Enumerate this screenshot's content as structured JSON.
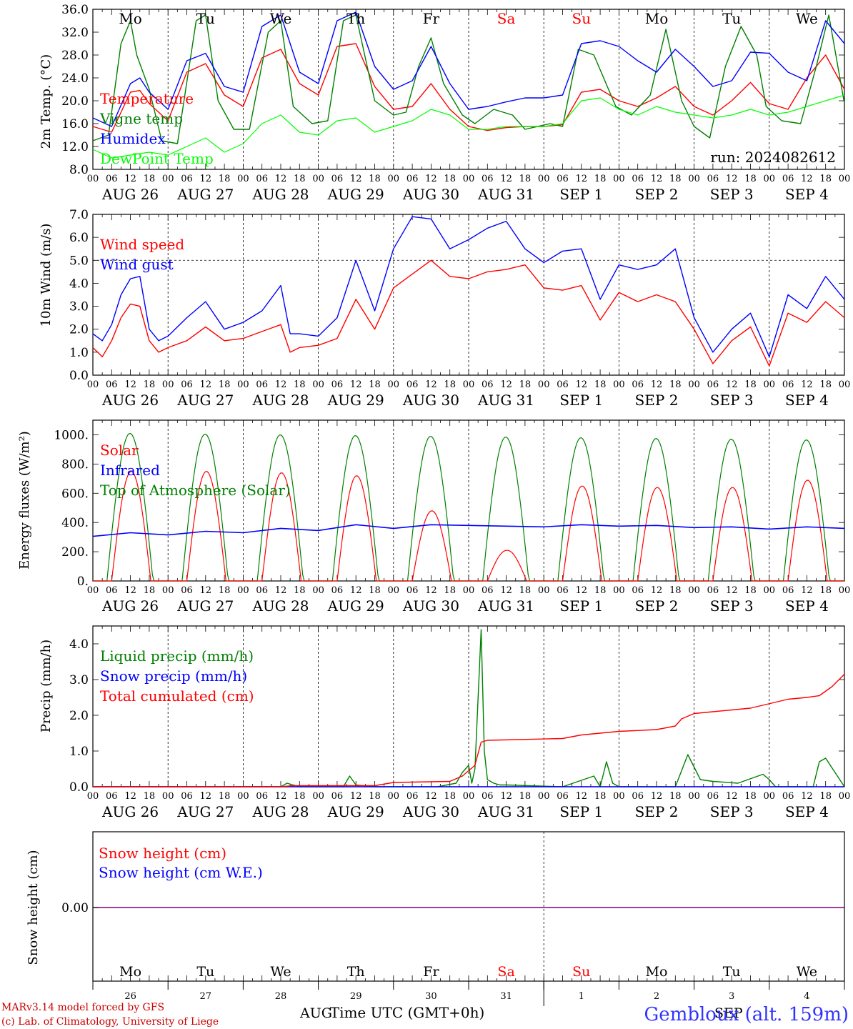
{
  "chart_data": [
    {
      "type": "line",
      "ylabel": "2m Temp. (°C)",
      "ylim": [
        8.0,
        36.0
      ],
      "yticks": [
        "8.0",
        "12.0",
        "16.0",
        "20.0",
        "24.0",
        "28.0",
        "32.0",
        "36.0"
      ],
      "day_names": [
        "Mo",
        "Tu",
        "We",
        "Th",
        "Fr",
        "Sa",
        "Su",
        "Mo",
        "Tu",
        "We"
      ],
      "weekend_color": "#ff0000",
      "date_labels": [
        "AUG 26",
        "AUG 27",
        "AUG 28",
        "AUG 29",
        "AUG 30",
        "AUG 31",
        "SEP  1",
        "SEP  2",
        "SEP  3",
        "SEP  4"
      ],
      "hour_ticks": [
        "00",
        "06",
        "12",
        "18"
      ],
      "annotation": "run: 2024082612",
      "x_unit": "hours from 2024-08-26 00 UTC",
      "series": [
        {
          "name": "Temperature",
          "color": "#ff0000",
          "x": [
            0,
            6,
            12,
            15,
            18,
            24,
            30,
            36,
            42,
            48,
            54,
            60,
            66,
            72,
            78,
            84,
            90,
            96,
            102,
            108,
            114,
            120,
            126,
            132,
            138,
            144,
            150,
            156,
            162,
            168,
            174,
            180,
            186,
            192,
            198,
            204,
            210,
            216,
            222,
            228,
            234,
            240
          ],
          "values": [
            15.5,
            14.5,
            21.5,
            21.8,
            19.5,
            16.5,
            25.0,
            26.5,
            21.0,
            19.0,
            27.5,
            29.0,
            23.0,
            21.0,
            29.5,
            30.0,
            22.5,
            18.5,
            19.0,
            23.0,
            18.5,
            15.5,
            14.8,
            15.3,
            15.5,
            15.5,
            15.8,
            21.5,
            22.0,
            20.0,
            19.0,
            20.5,
            22.5,
            19.0,
            17.5,
            20.0,
            23.2,
            19.5,
            18.5,
            24.0,
            28.0,
            22.0
          ]
        },
        {
          "name": "Vigne temp",
          "color": "#008000",
          "x": [
            0,
            5,
            9,
            12,
            14,
            18,
            22,
            27,
            33,
            36,
            40,
            45,
            50,
            56,
            60,
            64,
            70,
            75,
            80,
            84,
            90,
            96,
            100,
            104,
            108,
            112,
            118,
            122,
            128,
            134,
            138,
            146,
            150,
            155,
            160,
            167,
            172,
            178,
            183,
            188,
            192,
            197,
            202,
            207,
            212,
            215,
            220,
            226,
            231,
            235,
            240
          ],
          "values": [
            13.0,
            14.0,
            30.0,
            34.0,
            28.0,
            22.0,
            13.0,
            12.5,
            34.0,
            35.0,
            20.0,
            15.0,
            15.0,
            32.0,
            34.0,
            19.0,
            16.0,
            16.5,
            34.0,
            35.0,
            20.0,
            17.5,
            18.0,
            26.0,
            31.0,
            23.0,
            17.5,
            16.0,
            18.5,
            17.5,
            15.0,
            16.0,
            15.5,
            29.0,
            28.0,
            19.0,
            17.5,
            21.0,
            32.5,
            20.0,
            15.5,
            13.5,
            26.0,
            33.0,
            28.0,
            19.0,
            16.5,
            16.0,
            26.0,
            35.0,
            19.5
          ]
        },
        {
          "name": "Humidex",
          "color": "#0000ff",
          "x": [
            0,
            6,
            12,
            15,
            18,
            24,
            30,
            36,
            42,
            48,
            54,
            60,
            66,
            72,
            78,
            84,
            90,
            96,
            102,
            108,
            114,
            120,
            126,
            132,
            138,
            144,
            150,
            156,
            162,
            168,
            174,
            180,
            186,
            192,
            198,
            204,
            210,
            216,
            222,
            228,
            234,
            240
          ],
          "values": [
            17.0,
            15.5,
            23.0,
            24.0,
            21.5,
            18.5,
            27.0,
            28.3,
            22.5,
            21.5,
            33.0,
            35.0,
            25.0,
            23.0,
            34.0,
            35.5,
            26.0,
            22.0,
            23.5,
            29.5,
            23.0,
            18.5,
            19.0,
            19.8,
            20.5,
            20.5,
            21.0,
            30.0,
            30.5,
            29.5,
            27.0,
            25.0,
            29.0,
            26.0,
            22.5,
            23.5,
            28.5,
            28.3,
            25.0,
            23.5,
            34.0,
            30.0
          ]
        },
        {
          "name": "DewPoint Temp",
          "color": "#00ff00",
          "x": [
            0,
            6,
            12,
            18,
            24,
            30,
            36,
            42,
            48,
            54,
            60,
            66,
            72,
            78,
            84,
            90,
            96,
            102,
            108,
            114,
            120,
            126,
            132,
            138,
            144,
            150,
            156,
            162,
            168,
            174,
            180,
            186,
            192,
            198,
            204,
            210,
            216,
            222,
            228,
            234,
            240
          ],
          "values": [
            11.5,
            10.0,
            10.5,
            11.0,
            10.5,
            12.0,
            13.5,
            11.0,
            12.5,
            16.0,
            17.5,
            14.5,
            14.0,
            16.5,
            17.0,
            14.5,
            15.5,
            16.5,
            18.5,
            17.5,
            15.0,
            15.0,
            15.5,
            15.5,
            15.5,
            16.0,
            20.0,
            20.5,
            18.5,
            17.5,
            19.0,
            18.0,
            17.5,
            17.0,
            17.5,
            18.5,
            17.5,
            18.0,
            19.0,
            20.0,
            21.0
          ]
        }
      ]
    },
    {
      "type": "line",
      "ylabel": "10m Wind (m/s)",
      "ylim": [
        0.0,
        7.0
      ],
      "yticks": [
        "0.0",
        "1.0",
        "2.0",
        "3.0",
        "4.0",
        "5.0",
        "6.0",
        "7.0"
      ],
      "ref_line": 5.0,
      "date_labels": [
        "AUG 26",
        "AUG 27",
        "AUG 28",
        "AUG 29",
        "AUG 30",
        "AUG 31",
        "SEP  1",
        "SEP  2",
        "SEP  3",
        "SEP  4"
      ],
      "hour_ticks": [
        "00",
        "06",
        "12",
        "18"
      ],
      "x_unit": "hours from 2024-08-26 00 UTC",
      "series": [
        {
          "name": "Wind speed",
          "color": "#ff0000",
          "x": [
            0,
            3,
            6,
            9,
            12,
            15,
            18,
            21,
            24,
            30,
            36,
            42,
            48,
            54,
            60,
            63,
            66,
            72,
            78,
            84,
            90,
            96,
            102,
            108,
            114,
            120,
            126,
            132,
            138,
            144,
            150,
            156,
            162,
            168,
            174,
            180,
            186,
            192,
            198,
            201,
            204,
            210,
            216,
            222,
            228,
            234,
            240
          ],
          "values": [
            1.2,
            0.8,
            1.5,
            2.5,
            3.1,
            3.0,
            1.5,
            1.0,
            1.2,
            1.5,
            2.1,
            1.5,
            1.6,
            1.9,
            2.2,
            1.0,
            1.2,
            1.3,
            1.6,
            3.3,
            2.0,
            3.8,
            4.4,
            5.0,
            4.3,
            4.2,
            4.5,
            4.6,
            4.8,
            3.8,
            3.7,
            3.9,
            2.4,
            3.6,
            3.2,
            3.5,
            3.2,
            2.0,
            0.5,
            1.0,
            1.5,
            2.1,
            0.4,
            2.7,
            2.3,
            3.2,
            2.5
          ]
        },
        {
          "name": "Wind gust",
          "color": "#0000ff",
          "x": [
            0,
            3,
            6,
            9,
            12,
            15,
            18,
            21,
            24,
            30,
            36,
            42,
            48,
            54,
            60,
            63,
            66,
            72,
            78,
            84,
            90,
            96,
            102,
            108,
            114,
            120,
            126,
            132,
            138,
            144,
            150,
            156,
            162,
            168,
            174,
            180,
            186,
            192,
            198,
            201,
            204,
            210,
            216,
            222,
            228,
            234,
            240
          ],
          "values": [
            1.8,
            1.5,
            2.2,
            3.5,
            4.2,
            4.3,
            2.0,
            1.5,
            1.7,
            2.5,
            3.2,
            2.0,
            2.3,
            2.8,
            3.9,
            1.8,
            1.8,
            1.7,
            2.5,
            5.0,
            2.8,
            5.5,
            6.9,
            6.8,
            5.5,
            5.9,
            6.4,
            6.7,
            5.5,
            4.9,
            5.4,
            5.5,
            3.3,
            4.8,
            4.6,
            4.8,
            5.5,
            2.5,
            1.0,
            1.5,
            2.0,
            2.7,
            0.8,
            3.5,
            2.9,
            4.3,
            3.3
          ]
        }
      ]
    },
    {
      "type": "line",
      "ylabel": "Energy fluxes (W/m²)",
      "ylim": [
        0,
        1100
      ],
      "yticks": [
        "0.",
        "200.",
        "400.",
        "600.",
        "800.",
        "1000."
      ],
      "date_labels": [
        "AUG 26",
        "AUG 27",
        "AUG 28",
        "AUG 29",
        "AUG 30",
        "AUG 31",
        "SEP  1",
        "SEP  2",
        "SEP  3",
        "SEP  4"
      ],
      "hour_ticks": [
        "00",
        "06",
        "12",
        "18"
      ],
      "x_unit": "hours from 2024-08-26 00 UTC",
      "series": [
        {
          "name": "Solar",
          "color": "#ff0000",
          "peak_values": [
            750,
            750,
            740,
            720,
            480,
            210,
            650,
            640,
            640,
            690
          ]
        },
        {
          "name": "Infrared",
          "color": "#0000ff",
          "x": [
            0,
            12,
            24,
            36,
            48,
            60,
            72,
            84,
            96,
            108,
            120,
            132,
            144,
            156,
            168,
            180,
            192,
            204,
            216,
            228,
            240
          ],
          "values": [
            305,
            330,
            315,
            340,
            330,
            360,
            345,
            385,
            360,
            385,
            380,
            375,
            370,
            385,
            375,
            380,
            365,
            370,
            355,
            370,
            360
          ]
        },
        {
          "name": "Top of Atmosphere (Solar)",
          "color": "#008000",
          "peak_values": [
            1010,
            1005,
            1000,
            995,
            990,
            985,
            980,
            975,
            970,
            965
          ]
        }
      ]
    },
    {
      "type": "line",
      "ylabel": "Precip (mm/h)",
      "ylim": [
        0.0,
        4.5
      ],
      "yticks": [
        "0.0",
        "1.0",
        "2.0",
        "3.0",
        "4.0"
      ],
      "date_labels": [
        "AUG 26",
        "AUG 27",
        "AUG 28",
        "AUG 29",
        "AUG 30",
        "AUG 31",
        "SEP  1",
        "SEP  2",
        "SEP  3",
        "SEP  4"
      ],
      "hour_ticks": [
        "00",
        "06",
        "12",
        "18"
      ],
      "x_unit": "hours from 2024-08-26 00 UTC",
      "series": [
        {
          "name": "Liquid precip (mm/h)",
          "color": "#008000",
          "x": [
            0,
            60,
            62,
            64,
            66,
            72,
            80,
            82,
            84,
            90,
            96,
            110,
            116,
            118,
            120,
            121,
            122,
            124,
            125,
            126,
            128,
            130,
            132,
            150,
            160,
            162,
            164,
            166,
            168,
            186,
            190,
            194,
            198,
            206,
            214,
            216,
            218,
            230,
            232,
            234,
            240
          ],
          "values": [
            0,
            0,
            0.1,
            0.05,
            0,
            0,
            0,
            0.3,
            0.05,
            0,
            0,
            0,
            0.1,
            0.4,
            0.6,
            0.1,
            0.5,
            4.4,
            1.0,
            0.2,
            0.1,
            0.05,
            0.05,
            0,
            0.3,
            0,
            0.7,
            0.1,
            0,
            0,
            0.9,
            0.2,
            0.15,
            0.1,
            0.35,
            0.2,
            0,
            0,
            0.7,
            0.8,
            0
          ]
        },
        {
          "name": "Snow precip (mm/h)",
          "color": "#0000ff",
          "x": [
            0,
            240
          ],
          "values": [
            0,
            0
          ]
        },
        {
          "name": "Total cumulated (cm)",
          "color": "#ff0000",
          "x": [
            0,
            60,
            64,
            90,
            96,
            114,
            118,
            120,
            122,
            124,
            126,
            150,
            156,
            168,
            180,
            186,
            188,
            192,
            198,
            204,
            210,
            222,
            228,
            232,
            236,
            240
          ],
          "values": [
            0,
            0,
            0.03,
            0.03,
            0.12,
            0.15,
            0.3,
            0.45,
            0.6,
            1.25,
            1.3,
            1.35,
            1.45,
            1.55,
            1.6,
            1.7,
            1.9,
            2.05,
            2.1,
            2.15,
            2.2,
            2.45,
            2.5,
            2.55,
            2.8,
            3.15
          ]
        }
      ]
    },
    {
      "type": "line",
      "ylabel": "Snow height (cm)",
      "yticks": [
        "0.00"
      ],
      "day_names": [
        "Mo",
        "Tu",
        "We",
        "Th",
        "Fr",
        "Sa",
        "Su",
        "Mo",
        "Tu",
        "We"
      ],
      "day_numbers": [
        "26",
        "27",
        "28",
        "29",
        "30",
        "31",
        "1",
        "2",
        "3",
        "4"
      ],
      "xlabel": "Time UTC (GMT+0h)",
      "month_left": "AUG",
      "month_right": "SEP",
      "series": [
        {
          "name": "Snow height (cm)",
          "color": "#ff0000",
          "x": [
            0,
            240
          ],
          "values": [
            0,
            0
          ]
        },
        {
          "name": "Snow height (cm W.E.)",
          "color": "#0000ff",
          "x": [
            0,
            240
          ],
          "values": [
            0,
            0
          ]
        }
      ]
    }
  ],
  "footer": {
    "credit_line1": "MARv3.14 model forced by GFS",
    "credit_line2": "(c) Lab. of Climatology, University of Liege",
    "station": "Gembloux (alt. 159m)"
  }
}
